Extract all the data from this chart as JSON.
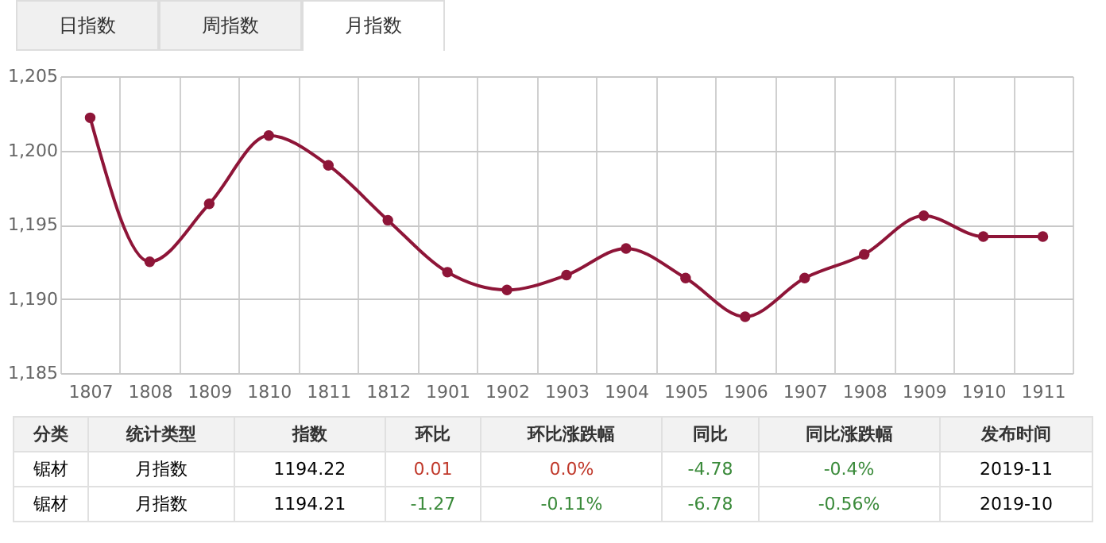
{
  "chart_data": [
    {
      "type": "line",
      "annotations": [
        "日指数",
        "周指数",
        "月指数"
      ],
      "categories": [
        "1807",
        "1808",
        "1809",
        "1810",
        "1811",
        "1812",
        "1901",
        "1902",
        "1903",
        "1904",
        "1905",
        "1906",
        "1907",
        "1908",
        "1909",
        "1910",
        "1911"
      ],
      "series": [
        {
          "color": "#8e1538",
          "values": [
            1202.2,
            1192.5,
            1196.4,
            1201.0,
            1199.0,
            1195.3,
            1191.8,
            1190.6,
            1191.6,
            1193.4,
            1191.4,
            1188.8,
            1191.4,
            1193.0,
            1195.6,
            1194.2,
            1194.2
          ]
        }
      ],
      "ylim": [
        1185,
        1205
      ],
      "yticks": [
        {
          "value": 1185,
          "label": "1,185"
        },
        {
          "value": 1190,
          "label": "1,190"
        },
        {
          "value": 1195,
          "label": "1,195"
        },
        {
          "value": 1200,
          "label": "1,200"
        },
        {
          "value": 1205,
          "label": "1,205"
        }
      ],
      "grid": true,
      "marker": "circle",
      "legend": false
    },
    {
      "type": "other",
      "categories": [
        "分类",
        "统计类型",
        "指数",
        "环比",
        "环比涨跌幅",
        "同比",
        "同比涨跌幅",
        "发布时间"
      ],
      "annotations": [
        "锯材",
        "月指数",
        "1194.22",
        "0.01",
        "0.0%",
        "-4.78",
        "-0.4%",
        "2019-11",
        "锯材",
        "月指数",
        "1194.21",
        "-1.27",
        "-0.11%",
        "-6.78",
        "-0.56%",
        "2019-10"
      ],
      "colors": [
        "#f2f2f2",
        "#f2f2f2",
        "#f2f2f2",
        "#f2f2f2",
        "#f2f2f2",
        "#f2f2f2",
        "#f2f2f2",
        "#f2f2f2"
      ]
    }
  ]
}
